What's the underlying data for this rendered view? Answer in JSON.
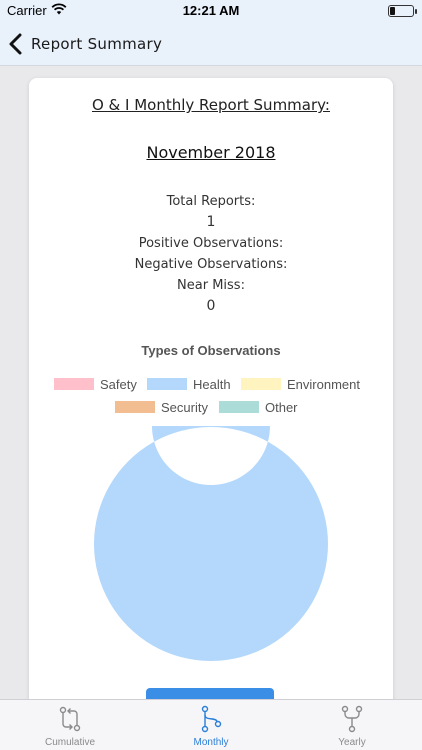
{
  "status_bar": {
    "carrier": "Carrier",
    "time": "12:21 AM"
  },
  "nav": {
    "title": "Report Summary",
    "back_icon": "chevron-left-icon"
  },
  "report": {
    "heading": "O & I Monthly Report Summary:",
    "month": "November 2018",
    "stats": [
      {
        "label": "Total Reports:",
        "value": "1"
      },
      {
        "label": "Positive Observations:",
        "value": ""
      },
      {
        "label": "Negative Observations:",
        "value": ""
      },
      {
        "label": "Near Miss:",
        "value": "0"
      }
    ]
  },
  "chart_data": {
    "type": "pie",
    "title": "Types of Observations",
    "donut": true,
    "legend_position": "top",
    "categories": [
      "Safety",
      "Health",
      "Environment",
      "Security",
      "Other"
    ],
    "values": [
      0,
      1,
      0,
      0,
      0
    ],
    "colors": [
      "#ffc0cb",
      "#b3d8fb",
      "#fff3c0",
      "#f2bd90",
      "#abdcd7"
    ]
  },
  "tabs": [
    {
      "label": "Cumulative",
      "icon": "git-compare-icon",
      "active": false
    },
    {
      "label": "Monthly",
      "icon": "git-branch-icon",
      "active": true
    },
    {
      "label": "Yearly",
      "icon": "git-fork-icon",
      "active": false
    }
  ]
}
